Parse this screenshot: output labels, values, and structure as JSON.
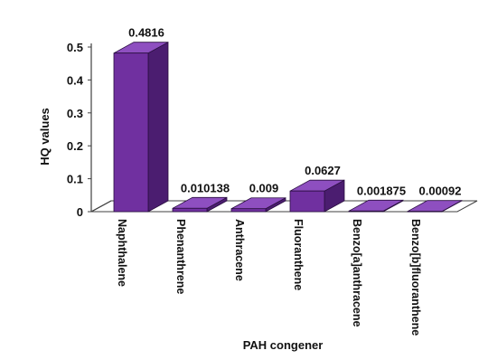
{
  "chart_data": {
    "type": "bar",
    "categories": [
      "Naphthalene",
      "Phenanthrene",
      "Anthracene",
      "Fluoranthene",
      "Benzo[a]anthracene",
      "Benzo[b]fluoranthene"
    ],
    "values": [
      0.4816,
      0.010138,
      0.009,
      0.0627,
      0.001875,
      0.00092
    ],
    "data_labels": [
      "0.4816",
      "0.010138",
      "0.009",
      "0.0627",
      "0.001875",
      "0.00092"
    ],
    "yticks": [
      "0",
      "0.1",
      "0.2",
      "0.3",
      "0.4",
      "0.5"
    ],
    "ylim": [
      0,
      0.5
    ],
    "title": "",
    "xlabel": "PAH congener",
    "ylabel": "HQ values",
    "grid": false,
    "legend": "none",
    "style": "3d-column",
    "colors": {
      "front": "#7030a0",
      "side": "#4b1d70",
      "top": "#8e4fc0",
      "edge": "#2a0f40",
      "floor": "#ffffff",
      "axis": "#404040"
    }
  }
}
